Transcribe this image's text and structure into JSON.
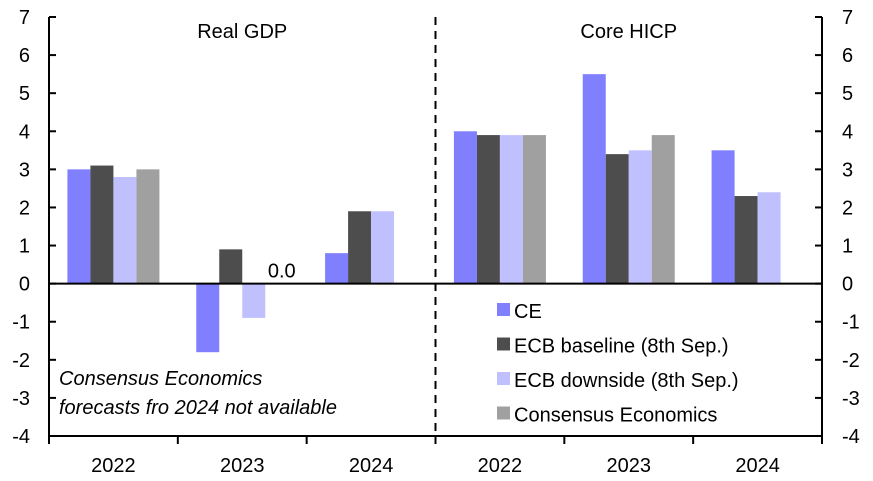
{
  "chart_data": {
    "type": "bar",
    "title": "",
    "panels": [
      {
        "title": "Real GDP",
        "categories": [
          "2022",
          "2023",
          "2024"
        ],
        "series": [
          {
            "name": "CE",
            "values": [
              3.0,
              -1.8,
              0.8
            ]
          },
          {
            "name": "ECB baseline (8th Sep.)",
            "values": [
              3.1,
              0.9,
              1.9
            ]
          },
          {
            "name": "ECB downside (8th Sep.)",
            "values": [
              2.8,
              -0.9,
              1.9
            ]
          },
          {
            "name": "Consensus Economics",
            "values": [
              3.0,
              0.0,
              null
            ]
          }
        ],
        "annotations": [
          {
            "text": "0.0",
            "category": "2023",
            "series": "Consensus Economics"
          }
        ]
      },
      {
        "title": "Core HICP",
        "categories": [
          "2022",
          "2023",
          "2024"
        ],
        "series": [
          {
            "name": "CE",
            "values": [
              4.0,
              5.5,
              3.5
            ]
          },
          {
            "name": "ECB baseline (8th Sep.)",
            "values": [
              3.9,
              3.4,
              2.3
            ]
          },
          {
            "name": "ECB downside (8th Sep.)",
            "values": [
              3.9,
              3.5,
              2.4
            ]
          },
          {
            "name": "Consensus Economics",
            "values": [
              3.9,
              3.9,
              null
            ]
          }
        ]
      }
    ],
    "ylim": [
      -4,
      7
    ],
    "yticks": [
      "7",
      "6",
      "5",
      "4",
      "3",
      "2",
      "1",
      "0",
      "-1",
      "-2",
      "-3",
      "-4"
    ],
    "ytick_values": [
      7,
      6,
      5,
      4,
      3,
      2,
      1,
      0,
      -1,
      -2,
      -3,
      -4
    ],
    "xlabel": "",
    "ylabel": "",
    "legend_position": "bottom-right",
    "grid": false,
    "note_lines": [
      "Consensus Economics",
      "forecasts fro 2024 not available"
    ]
  },
  "colors": {
    "CE": "#8080ff",
    "ECB baseline (8th Sep.)": "#4d4d4d",
    "ECB downside (8th Sep.)": "#c0c0ff",
    "Consensus Economics": "#a0a0a0"
  }
}
